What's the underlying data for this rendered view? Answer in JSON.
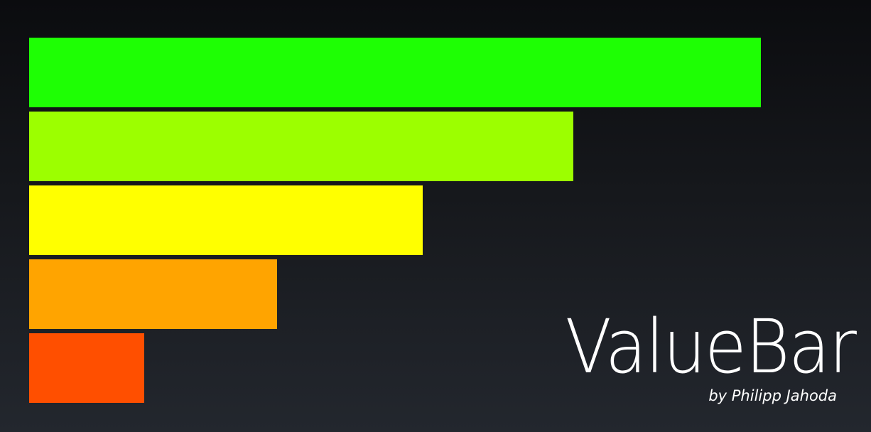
{
  "title": "ValueBar",
  "byline": "by Philipp Jahoda",
  "bars": [
    {
      "value": 1.0,
      "color": "#1eff04"
    },
    {
      "value": 0.744,
      "color": "#9cff00"
    },
    {
      "value": 0.538,
      "color": "#ffff00"
    },
    {
      "value": 0.339,
      "color": "#ffa400"
    },
    {
      "value": 0.157,
      "color": "#ff4f00"
    }
  ]
}
